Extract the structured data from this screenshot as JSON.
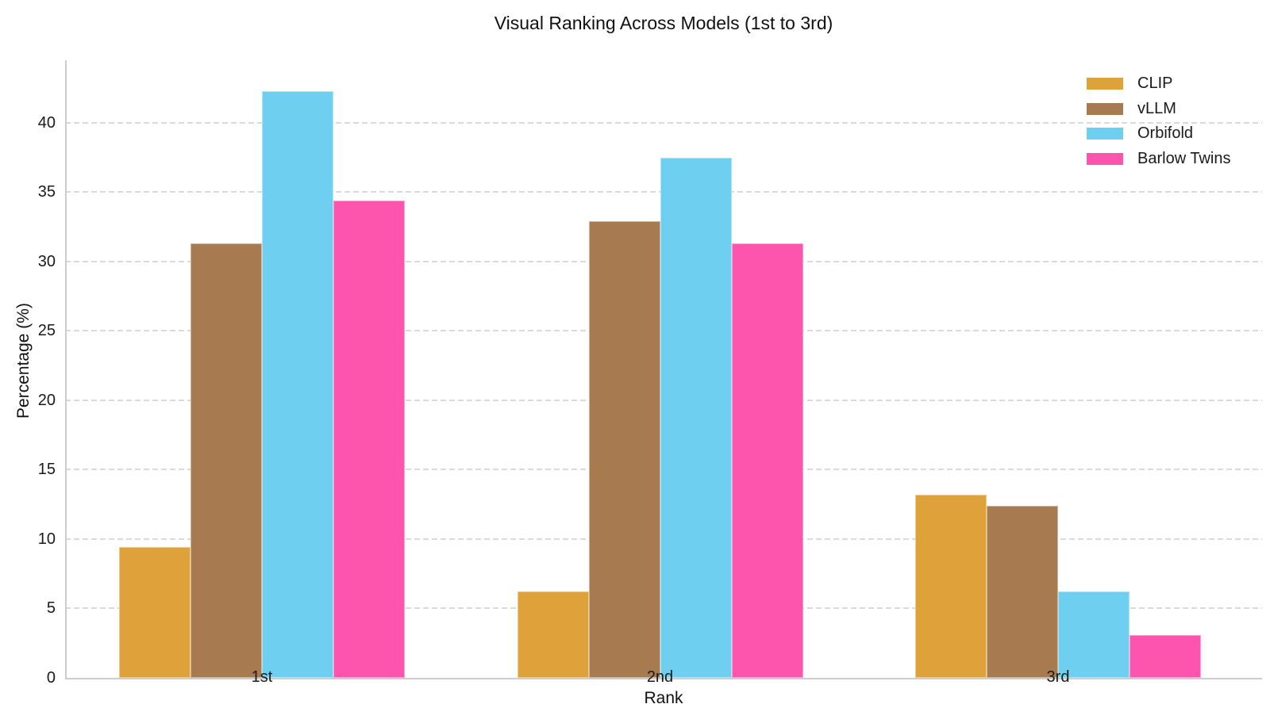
{
  "title": "Visual Ranking Across Models (1st to 3rd)",
  "chart_data": {
    "type": "bar",
    "title": "Visual Ranking Across Models (1st to 3rd)",
    "xlabel": "Rank",
    "ylabel": "Percentage (%)",
    "categories": [
      "1st",
      "2nd",
      "3rd"
    ],
    "series": [
      {
        "name": "CLIP",
        "color": "#DFA23A",
        "values": [
          9.4,
          6.2,
          13.2
        ]
      },
      {
        "name": "vLLM",
        "color": "#A87A4F",
        "values": [
          31.3,
          32.9,
          12.4
        ]
      },
      {
        "name": "Orbifold",
        "color": "#6ECFF1",
        "values": [
          42.3,
          37.5,
          6.2
        ]
      },
      {
        "name": "Barlow Twins",
        "color": "#FD55AE",
        "values": [
          34.4,
          31.3,
          3.1
        ]
      }
    ],
    "ylim": [
      0,
      44.5
    ],
    "yticks": [
      0,
      5,
      10,
      15,
      20,
      25,
      30,
      35,
      40
    ],
    "grid": "horizontal-dashed",
    "legend_position": "upper-right",
    "colors": {
      "grid": "#dadada",
      "spine": "#cccccc",
      "text": "#1a1a1a",
      "background": "#ffffff"
    }
  }
}
